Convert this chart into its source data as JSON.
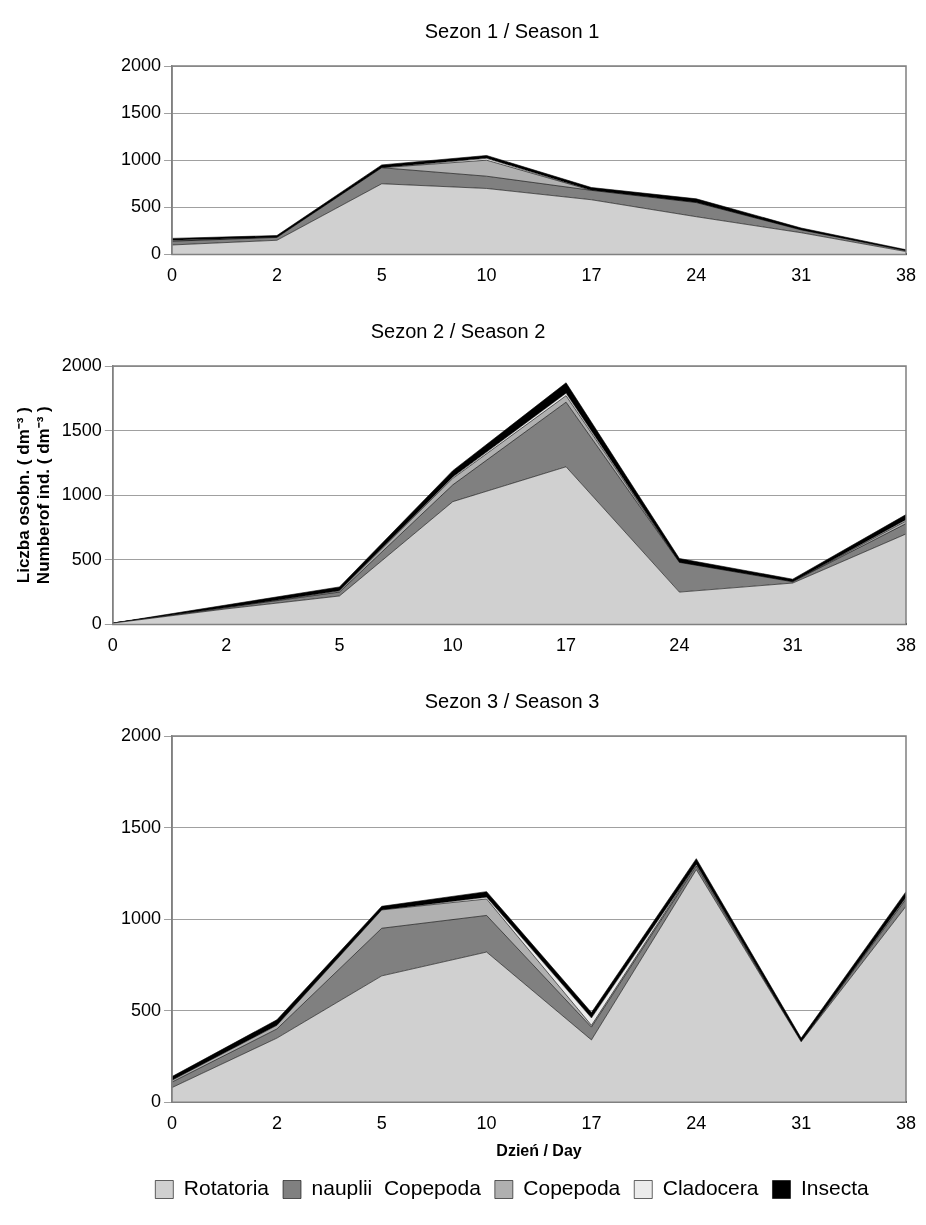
{
  "chart_data": [
    {
      "type": "area",
      "title": "Sezon 1 / Season 1",
      "stacked": true,
      "categories": [
        "0",
        "2",
        "5",
        "10",
        "17",
        "24",
        "31",
        "38"
      ],
      "ylim": [
        0,
        2000
      ],
      "yticks": [
        0,
        500,
        1000,
        1500,
        2000
      ],
      "grid": "y",
      "series": [
        {
          "color": "#d0d0d0",
          "values": [
            100,
            150,
            750,
            700,
            580,
            400,
            230,
            30
          ]
        },
        {
          "color": "#808080",
          "values": [
            40,
            30,
            170,
            130,
            100,
            150,
            30,
            10
          ]
        },
        {
          "color": "#b0b0b0",
          "values": [
            0,
            0,
            0,
            170,
            0,
            0,
            0,
            0
          ]
        },
        {
          "color": "#ececec",
          "values": [
            10,
            0,
            0,
            20,
            0,
            0,
            0,
            0
          ]
        },
        {
          "color": "#000000",
          "values": [
            20,
            20,
            30,
            30,
            30,
            40,
            20,
            10
          ]
        }
      ]
    },
    {
      "type": "area",
      "title": "Sezon 2 / Season 2",
      "ylabel": "Liczba osobn. ( dm⁻³ )\nNumberof ind. ( dm⁻³ )",
      "stacked": true,
      "categories": [
        "0",
        "2",
        "5",
        "10",
        "17",
        "24",
        "31",
        "38"
      ],
      "ylim": [
        0,
        2000
      ],
      "yticks": [
        0,
        500,
        1000,
        1500,
        2000
      ],
      "grid": "y",
      "series": [
        {
          "color": "#d0d0d0",
          "values": [
            10,
            120,
            220,
            950,
            1220,
            250,
            320,
            700
          ]
        },
        {
          "color": "#808080",
          "values": [
            0,
            10,
            30,
            130,
            500,
            230,
            10,
            80
          ]
        },
        {
          "color": "#b0b0b0",
          "values": [
            0,
            0,
            10,
            50,
            50,
            0,
            0,
            20
          ]
        },
        {
          "color": "#ececec",
          "values": [
            0,
            0,
            0,
            10,
            20,
            0,
            0,
            10
          ]
        },
        {
          "color": "#000000",
          "values": [
            0,
            20,
            30,
            50,
            80,
            30,
            20,
            40
          ]
        }
      ]
    },
    {
      "type": "area",
      "title": "Sezon 3 / Season 3",
      "xlabel": "Dzień / Day",
      "stacked": true,
      "categories": [
        "0",
        "2",
        "5",
        "10",
        "17",
        "24",
        "31",
        "38"
      ],
      "ylim": [
        0,
        2000
      ],
      "yticks": [
        0,
        500,
        1000,
        1500,
        2000
      ],
      "grid": "y",
      "legend": "bottom",
      "series": [
        {
          "name": "Rotatoria",
          "color": "#d0d0d0",
          "values": [
            80,
            350,
            690,
            820,
            340,
            1270,
            330,
            1070
          ]
        },
        {
          "name": "nauplii  Copepoda",
          "color": "#808080",
          "values": [
            30,
            50,
            260,
            200,
            70,
            20,
            0,
            40
          ]
        },
        {
          "name": "Copepoda",
          "color": "#b0b0b0",
          "values": [
            10,
            20,
            100,
            90,
            10,
            10,
            0,
            10
          ]
        },
        {
          "name": "Cladocera",
          "color": "#ececec",
          "values": [
            0,
            0,
            0,
            10,
            40,
            0,
            0,
            0
          ]
        },
        {
          "name": "Insecta",
          "color": "#000000",
          "values": [
            20,
            30,
            20,
            30,
            30,
            30,
            20,
            30
          ]
        }
      ]
    }
  ]
}
